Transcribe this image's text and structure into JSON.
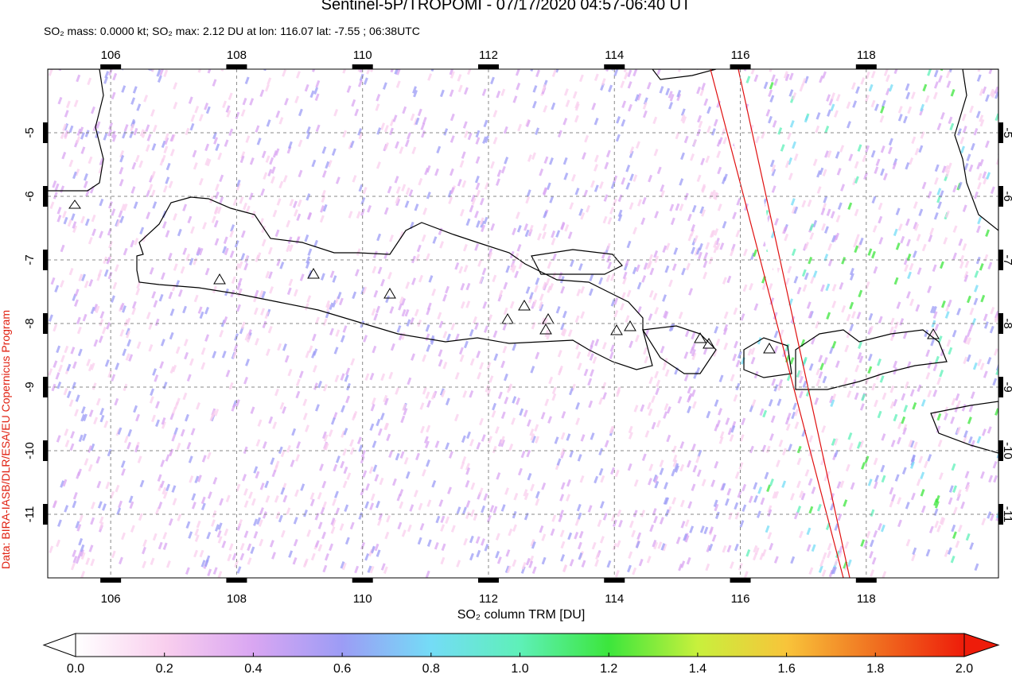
{
  "chart_data": {
    "type": "map",
    "title": "Sentinel-5P/TROPOMI - 07/17/2020 04:57-06:40 UT",
    "subtitle": "SO₂ mass: 0.0000 kt; SO₂ max: 2.12 DU at lon: 116.07 lat: -7.55 ; 06:38UTC",
    "credit": "Data: BIRA-IASB/DLR/ESA/EU Copernicus Program",
    "xlim": [
      105,
      120.1
    ],
    "ylim": [
      -12,
      -4
    ],
    "xticks": [
      106,
      108,
      110,
      112,
      114,
      116,
      118
    ],
    "yticks": [
      -5,
      -6,
      -7,
      -8,
      -9,
      -10,
      -11
    ],
    "grid": true,
    "colorbar": {
      "label": "SO₂ column TRM [DU]",
      "lim": [
        0,
        2
      ],
      "ticks": [
        {
          "value": 0,
          "label": "0.0"
        },
        {
          "value": 0.2,
          "label": "0.2"
        },
        {
          "value": 0.4,
          "label": "0.4"
        },
        {
          "value": 0.6,
          "label": "0.6"
        },
        {
          "value": 0.8,
          "label": "0.8"
        },
        {
          "value": 1,
          "label": "1.0"
        },
        {
          "value": 1.2,
          "label": "1.2"
        },
        {
          "value": 1.4,
          "label": "1.4"
        },
        {
          "value": 1.6,
          "label": "1.6"
        },
        {
          "value": 1.8,
          "label": "1.8"
        },
        {
          "value": 2,
          "label": "2.0"
        }
      ],
      "colors": [
        "#ffffff",
        "#f9cfee",
        "#d9a6f2",
        "#9c9cf5",
        "#74dcf6",
        "#5ef0b8",
        "#3ce63c",
        "#c8f03c",
        "#f8c43a",
        "#f07020",
        "#ee1c0a"
      ]
    }
  }
}
